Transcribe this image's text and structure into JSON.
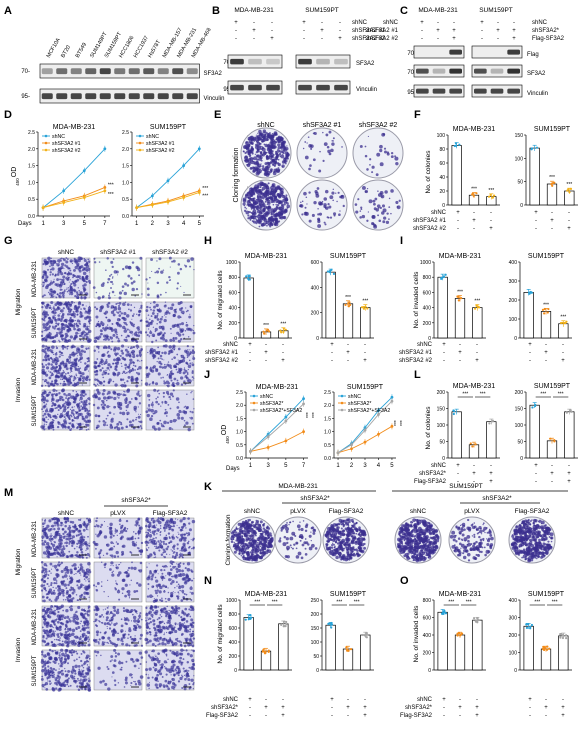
{
  "panels": {
    "A": {
      "letter": "A",
      "cell_lines": [
        "MCF10A",
        "BT20",
        "BT549",
        "SUM149PT",
        "SUM159PT",
        "HCC1806",
        "HCC1937",
        "Hs578T",
        "MDA-MB-157",
        "MDA-MB-231",
        "MDA-MB-468"
      ],
      "mw": [
        "70-",
        "95-"
      ],
      "blots": [
        "SF3A2",
        "Vinculin"
      ]
    },
    "B": {
      "letter": "B",
      "groups": [
        "MDA-MB-231",
        "SUM159PT"
      ],
      "rows": [
        {
          "label": "shNC",
          "signs": [
            "+",
            "-",
            "-",
            "+",
            "-",
            "-"
          ]
        },
        {
          "label": "shSF3A2 #1",
          "signs": [
            "-",
            "+",
            "-",
            "-",
            "+",
            "-"
          ]
        },
        {
          "label": "shSF3A2 #2",
          "signs": [
            "-",
            "-",
            "+",
            "-",
            "-",
            "+"
          ]
        }
      ],
      "mw": [
        "70-",
        "95-"
      ],
      "blots": [
        "SF3A2",
        "Vinculin"
      ]
    },
    "C": {
      "letter": "C",
      "groups": [
        "MDA-MB-231",
        "SUM159PT"
      ],
      "rows": [
        {
          "label": "shNC",
          "signs": [
            "+",
            "-",
            "-",
            "+",
            "-",
            "-"
          ]
        },
        {
          "label": "shSF3A2*",
          "signs": [
            "-",
            "+",
            "+",
            "-",
            "+",
            "+"
          ]
        },
        {
          "label": "Flag-SF3A2",
          "signs": [
            "-",
            "-",
            "+",
            "-",
            "-",
            "+"
          ]
        }
      ],
      "mw": [
        "70-",
        "70-",
        "95-"
      ],
      "blots": [
        "Flag",
        "SF3A2",
        "Vinculin"
      ]
    },
    "D": {
      "letter": "D",
      "ylabel": "OD",
      "ylabel_sub": "450",
      "xprefix": "Days",
      "stars": "***",
      "legend": [
        "shNC",
        "shSF3A2 #1",
        "shSF3A2 #2"
      ]
    },
    "E": {
      "letter": "E",
      "side_label": "Cloning formation",
      "col_labels": [
        "shNC",
        "shSF3A2 #1",
        "shSF3A2 #2"
      ],
      "row_labels": [
        "MDA-MB-231",
        "SUM159PT"
      ]
    },
    "F": {
      "letter": "F",
      "ylabel": "No. of colonies",
      "stars": "***",
      "rows": [
        {
          "label": "shNC",
          "signs": [
            "+",
            "-",
            "-",
            "+",
            "-",
            "-"
          ]
        },
        {
          "label": "shSF3A2 #1",
          "signs": [
            "-",
            "+",
            "-",
            "-",
            "+",
            "-"
          ]
        },
        {
          "label": "shSF3A2 #2",
          "signs": [
            "-",
            "-",
            "+",
            "-",
            "-",
            "+"
          ]
        }
      ]
    },
    "G": {
      "letter": "G",
      "col_labels": [
        "shNC",
        "shSF3A2 #1",
        "shSF3A2 #2"
      ],
      "row_labels": [
        "MDA-MB-231",
        "SUM159PT",
        "MDA-MB-231",
        "SUM159PT"
      ],
      "group_labels": [
        "Migration",
        "Invasion"
      ]
    },
    "H": {
      "letter": "H",
      "ylabel": "No. of migrated cells",
      "stars": "***",
      "rows": [
        {
          "label": "shNC",
          "signs": [
            "+",
            "-",
            "-",
            "+",
            "-",
            "-"
          ]
        },
        {
          "label": "shSF3A2 #1",
          "signs": [
            "-",
            "+",
            "-",
            "-",
            "+",
            "-"
          ]
        },
        {
          "label": "shSF3A2 #2",
          "signs": [
            "-",
            "-",
            "+",
            "-",
            "-",
            "+"
          ]
        }
      ]
    },
    "I": {
      "letter": "I",
      "ylabel": "No. of invaded cells",
      "stars": "***",
      "rows": [
        {
          "label": "shNC",
          "signs": [
            "+",
            "-",
            "-",
            "+",
            "-",
            "-"
          ]
        },
        {
          "label": "shSF3A2 #1",
          "signs": [
            "-",
            "+",
            "-",
            "-",
            "+",
            "-"
          ]
        },
        {
          "label": "shSF3A2 #2",
          "signs": [
            "-",
            "-",
            "+",
            "-",
            "-",
            "+"
          ]
        }
      ]
    },
    "J": {
      "letter": "J",
      "ylabel": "OD",
      "ylabel_sub": "450",
      "xprefix": "Days",
      "stars": "***",
      "legend": [
        "shNC",
        "shSF3A2*",
        "shSF3A2*+SF3A2"
      ]
    },
    "K": {
      "letter": "K",
      "side_label": "Cloning formation",
      "groups": [
        "MDA-MB-231",
        "SUM159PT"
      ],
      "sub_group": "shSF3A2*",
      "col_labels": [
        "shNC",
        "pLVX",
        "Flag-SF3A2",
        "shNC",
        "pLVX",
        "Flag-SF3A2"
      ]
    },
    "L": {
      "letter": "L",
      "ylabel": "No. of colonies",
      "stars": "***",
      "rows": [
        {
          "label": "shNC",
          "signs": [
            "+",
            "-",
            "-",
            "+",
            "-",
            "-"
          ]
        },
        {
          "label": "shSF3A2*",
          "signs": [
            "-",
            "+",
            "+",
            "-",
            "+",
            "+"
          ]
        },
        {
          "label": "Flag-SF3A2",
          "signs": [
            "-",
            "-",
            "+",
            "-",
            "-",
            "+"
          ]
        }
      ]
    },
    "M": {
      "letter": "M",
      "sub_group": "shSF3A2*",
      "col_labels": [
        "shNC",
        "pLVX",
        "Flag-SF3A2"
      ],
      "row_labels": [
        "MDA-MB-231",
        "SUM159PT",
        "MDA-MB-231",
        "SUM159PT"
      ],
      "group_labels": [
        "Migration",
        "Invasion"
      ]
    },
    "N": {
      "letter": "N",
      "ylabel": "No. of migrated cells",
      "stars": "***",
      "rows": [
        {
          "label": "shNC",
          "signs": [
            "+",
            "-",
            "-",
            "+",
            "-",
            "-"
          ]
        },
        {
          "label": "shSF3A2*",
          "signs": [
            "-",
            "+",
            "+",
            "-",
            "+",
            "+"
          ]
        },
        {
          "label": "Flag-SF3A2",
          "signs": [
            "-",
            "-",
            "+",
            "-",
            "-",
            "+"
          ]
        }
      ]
    },
    "O": {
      "letter": "O",
      "ylabel": "No. of invaded cells",
      "stars": "***",
      "rows": [
        {
          "label": "shNC",
          "signs": [
            "+",
            "-",
            "-",
            "+",
            "-",
            "-"
          ]
        },
        {
          "label": "shSF3A2*",
          "signs": [
            "-",
            "+",
            "+",
            "-",
            "+",
            "+"
          ]
        },
        {
          "label": "Flag-SF3A2",
          "signs": [
            "-",
            "-",
            "+",
            "-",
            "-",
            "+"
          ]
        }
      ]
    }
  },
  "chart_data": [
    {
      "id": "D1",
      "type": "line",
      "title": "MDA-MB-231",
      "x": [
        1,
        3,
        5,
        7
      ],
      "xticks": [
        1,
        3,
        5,
        7
      ],
      "ylim": [
        0,
        2.5
      ],
      "yticks": [
        0,
        0.5,
        1.0,
        1.5,
        2.0,
        2.5
      ],
      "series": [
        {
          "name": "shNC",
          "color": "#29a3d8",
          "values": [
            0.25,
            0.75,
            1.35,
            2.0
          ]
        },
        {
          "name": "shSF3A2 #1",
          "color": "#f28c1a",
          "values": [
            0.25,
            0.45,
            0.6,
            0.85
          ]
        },
        {
          "name": "shSF3A2 #2",
          "color": "#f2b21a",
          "values": [
            0.25,
            0.4,
            0.55,
            0.75
          ]
        }
      ]
    },
    {
      "id": "D2",
      "type": "line",
      "title": "SUM159PT",
      "x": [
        1,
        2,
        3,
        4,
        5
      ],
      "xticks": [
        1,
        2,
        3,
        4,
        5
      ],
      "ylim": [
        0,
        2.5
      ],
      "yticks": [
        0,
        0.5,
        1.0,
        1.5,
        2.0,
        2.5
      ],
      "series": [
        {
          "name": "shNC",
          "color": "#29a3d8",
          "values": [
            0.25,
            0.6,
            1.05,
            1.5,
            2.0
          ]
        },
        {
          "name": "shSF3A2 #1",
          "color": "#f28c1a",
          "values": [
            0.25,
            0.35,
            0.45,
            0.6,
            0.75
          ]
        },
        {
          "name": "shSF3A2 #2",
          "color": "#f2b21a",
          "values": [
            0.25,
            0.33,
            0.42,
            0.55,
            0.7
          ]
        }
      ]
    },
    {
      "id": "F1",
      "type": "bar",
      "title": "MDA-MB-231",
      "ylim": [
        0,
        100
      ],
      "yticks": [
        0,
        20,
        40,
        60,
        80,
        100
      ],
      "values": [
        85,
        14,
        12
      ],
      "colors": [
        "#29a3d8",
        "#f28c1a",
        "#f2b21a"
      ]
    },
    {
      "id": "F2",
      "type": "bar",
      "title": "SUM159PT",
      "ylim": [
        0,
        150
      ],
      "yticks": [
        0,
        50,
        100,
        150
      ],
      "values": [
        122,
        45,
        30
      ],
      "colors": [
        "#29a3d8",
        "#f28c1a",
        "#f2b21a"
      ]
    },
    {
      "id": "H1",
      "type": "bar",
      "title": "MDA-MB-231",
      "ylim": [
        0,
        1000
      ],
      "yticks": [
        0,
        200,
        400,
        600,
        800,
        1000
      ],
      "values": [
        790,
        80,
        95
      ],
      "colors": [
        "#29a3d8",
        "#f28c1a",
        "#f2b21a"
      ]
    },
    {
      "id": "H2",
      "type": "bar",
      "title": "SUM159PT",
      "ylim": [
        0,
        600
      ],
      "yticks": [
        0,
        200,
        400,
        600
      ],
      "values": [
        520,
        270,
        240
      ],
      "colors": [
        "#29a3d8",
        "#f28c1a",
        "#f2b21a"
      ]
    },
    {
      "id": "I1",
      "type": "bar",
      "title": "MDA-MB-231",
      "ylim": [
        0,
        1000
      ],
      "yticks": [
        0,
        200,
        400,
        600,
        800,
        1000
      ],
      "values": [
        800,
        520,
        400
      ],
      "colors": [
        "#29a3d8",
        "#f28c1a",
        "#f2b21a"
      ]
    },
    {
      "id": "I2",
      "type": "bar",
      "title": "SUM159PT",
      "ylim": [
        0,
        400
      ],
      "yticks": [
        0,
        100,
        200,
        300,
        400
      ],
      "values": [
        240,
        140,
        75
      ],
      "colors": [
        "#29a3d8",
        "#f28c1a",
        "#f2b21a"
      ]
    },
    {
      "id": "J1",
      "type": "line",
      "title": "MDA-MB-231",
      "x": [
        1,
        3,
        5,
        7
      ],
      "xticks": [
        1,
        3,
        5,
        7
      ],
      "ylim": [
        0,
        2.5
      ],
      "yticks": [
        0,
        0.5,
        1.0,
        1.5,
        2.0,
        2.5
      ],
      "series": [
        {
          "name": "shNC",
          "color": "#29a3d8",
          "values": [
            0.25,
            0.9,
            1.55,
            2.25
          ]
        },
        {
          "name": "shSF3A2*",
          "color": "#f28c1a",
          "values": [
            0.25,
            0.4,
            0.65,
            1.0
          ]
        },
        {
          "name": "shSF3A2*+SF3A2",
          "color": "#a6a6a6",
          "values": [
            0.25,
            0.8,
            1.4,
            2.05
          ]
        }
      ]
    },
    {
      "id": "J2",
      "type": "line",
      "title": "SUM159PT",
      "x": [
        1,
        2,
        3,
        4,
        5
      ],
      "xticks": [
        1,
        2,
        3,
        4,
        5
      ],
      "ylim": [
        0,
        2.5
      ],
      "yticks": [
        0,
        0.5,
        1.0,
        1.5,
        2.0,
        2.5
      ],
      "series": [
        {
          "name": "shNC",
          "color": "#29a3d8",
          "values": [
            0.2,
            0.55,
            1.15,
            1.8,
            2.3
          ]
        },
        {
          "name": "shSF3A2*",
          "color": "#f28c1a",
          "values": [
            0.2,
            0.35,
            0.6,
            0.9,
            1.2
          ]
        },
        {
          "name": "shSF3A2*+SF3A2",
          "color": "#a6a6a6",
          "values": [
            0.2,
            0.5,
            1.05,
            1.65,
            2.15
          ]
        }
      ]
    },
    {
      "id": "L1",
      "type": "bar",
      "title": "MDA-MB-231",
      "ylim": [
        0,
        200
      ],
      "yticks": [
        0,
        50,
        100,
        150,
        200
      ],
      "values": [
        140,
        40,
        110
      ],
      "colors": [
        "#29a3d8",
        "#f28c1a",
        "#a6a6a6"
      ]
    },
    {
      "id": "L2",
      "type": "bar",
      "title": "SUM159PT",
      "ylim": [
        0,
        200
      ],
      "yticks": [
        0,
        50,
        100,
        150,
        200
      ],
      "values": [
        160,
        52,
        140
      ],
      "colors": [
        "#29a3d8",
        "#f28c1a",
        "#a6a6a6"
      ]
    },
    {
      "id": "N1",
      "type": "bar",
      "title": "MDA-MB-231",
      "ylim": [
        0,
        1000
      ],
      "yticks": [
        0,
        200,
        400,
        600,
        800,
        1000
      ],
      "values": [
        750,
        270,
        660
      ],
      "colors": [
        "#29a3d8",
        "#f28c1a",
        "#a6a6a6"
      ]
    },
    {
      "id": "N2",
      "type": "bar",
      "title": "SUM159PT",
      "ylim": [
        0,
        250
      ],
      "yticks": [
        0,
        50,
        100,
        150,
        200,
        250
      ],
      "values": [
        160,
        75,
        125
      ],
      "colors": [
        "#29a3d8",
        "#f28c1a",
        "#a6a6a6"
      ]
    },
    {
      "id": "O1",
      "type": "bar",
      "title": "MDA-MB-231",
      "ylim": [
        0,
        800
      ],
      "yticks": [
        0,
        200,
        400,
        600,
        800
      ],
      "values": [
        660,
        400,
        570
      ],
      "colors": [
        "#29a3d8",
        "#f28c1a",
        "#a6a6a6"
      ]
    },
    {
      "id": "O2",
      "type": "bar",
      "title": "SUM159PT",
      "ylim": [
        0,
        400
      ],
      "yticks": [
        0,
        100,
        200,
        300,
        400
      ],
      "values": [
        250,
        120,
        195
      ],
      "colors": [
        "#29a3d8",
        "#f28c1a",
        "#a6a6a6"
      ]
    }
  ]
}
